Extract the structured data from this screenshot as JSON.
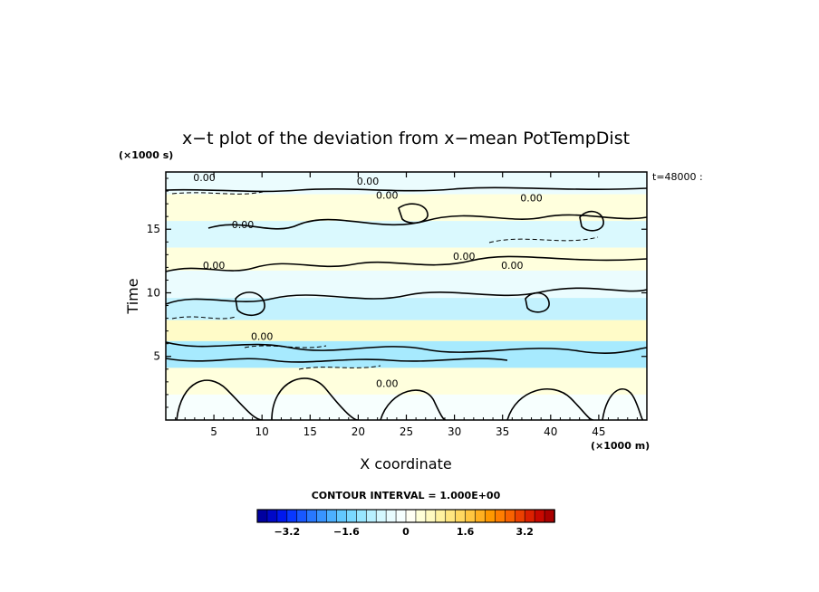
{
  "chart_data": {
    "type": "heatmap",
    "title": "x−t plot of the deviation from x−mean PotTempDist",
    "xlabel": "X coordinate",
    "ylabel": "Time",
    "x_unit_label": "(×1000 m)",
    "y_unit_label": "(×1000 s)",
    "time_annotation": "t=48000 :",
    "xlim": [
      0,
      50
    ],
    "ylim": [
      0,
      19.5
    ],
    "x_ticks": [
      "5",
      "10",
      "15",
      "20",
      "25",
      "30",
      "35",
      "40",
      "45"
    ],
    "y_ticks": [
      "5",
      "10",
      "15"
    ],
    "contour_interval_text": "CONTOUR INTERVAL = 1.000E+00",
    "contour_label": "0.00",
    "colorbar": {
      "range": [
        -4,
        4
      ],
      "tick_labels": [
        "−3.2",
        "−1.6",
        "0",
        "1.6",
        "3.2"
      ],
      "tick_values": [
        -3.2,
        -1.6,
        0,
        1.6,
        3.2
      ],
      "colors": [
        "#0000a0",
        "#0008c8",
        "#0018ee",
        "#0838ff",
        "#1858ff",
        "#2878ff",
        "#3894ff",
        "#4cb0ff",
        "#62c8ff",
        "#7ad8ff",
        "#98e6ff",
        "#b8f0ff",
        "#d4f8ff",
        "#e8fcff",
        "#f6ffff",
        "#fffff4",
        "#ffffd8",
        "#fffac0",
        "#fff2a0",
        "#ffe680",
        "#ffd860",
        "#ffc640",
        "#ffb020",
        "#ff9800",
        "#ff7e00",
        "#f86200",
        "#ec4000",
        "#dc2000",
        "#c80800",
        "#aa0000"
      ]
    },
    "bands": [
      {
        "t": 18.5,
        "v": -0.5
      },
      {
        "t": 17.0,
        "v": 0.4
      },
      {
        "t": 14.3,
        "v": -0.7
      },
      {
        "t": 12.8,
        "v": 0.5
      },
      {
        "t": 10.7,
        "v": -0.4
      },
      {
        "t": 8.5,
        "v": -1.0
      },
      {
        "t": 7.2,
        "v": 0.6
      },
      {
        "t": 5.2,
        "v": -1.3
      },
      {
        "t": 3.0,
        "v": 0.3
      },
      {
        "t": 1.0,
        "v": -0.2
      }
    ]
  }
}
